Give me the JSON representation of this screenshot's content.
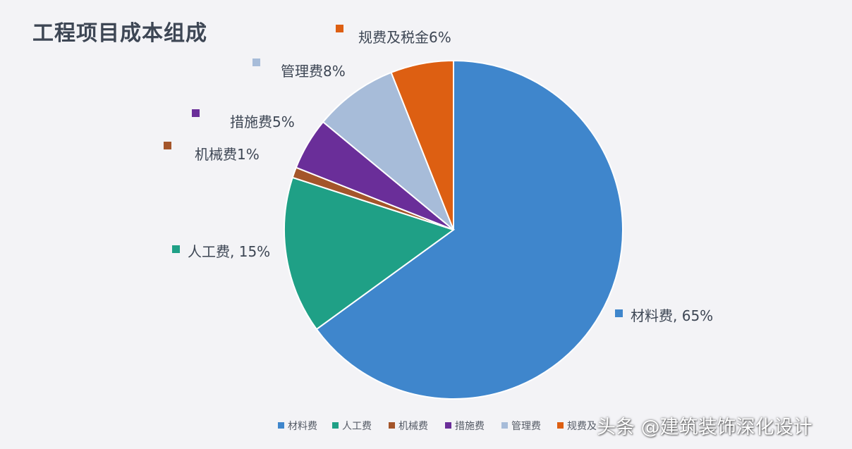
{
  "chart_data": {
    "type": "pie",
    "title": "工程项目成本组成",
    "slices": [
      {
        "name": "材料费",
        "value": 65,
        "label": "材料费, 65%",
        "color": "#3f86cc"
      },
      {
        "name": "人工费",
        "value": 15,
        "label": "人工费, 15%",
        "color": "#1fa086"
      },
      {
        "name": "机械费",
        "value": 1,
        "label": "机械费1%",
        "color": "#a4552a"
      },
      {
        "name": "措施费",
        "value": 5,
        "label": "措施费5%",
        "color": "#6a2e99"
      },
      {
        "name": "管理费",
        "value": 8,
        "label": "管理费8%",
        "color": "#a7bcd9"
      },
      {
        "name": "规费及税金",
        "value": 6,
        "label": "规费及税金6%",
        "color": "#dd5f12"
      }
    ],
    "legend": {
      "position": "bottom",
      "entries": [
        "材料费",
        "人工费",
        "机械费",
        "措施费",
        "管理费",
        "规费及"
      ]
    }
  },
  "watermark": "头条 @建筑装饰深化设计"
}
